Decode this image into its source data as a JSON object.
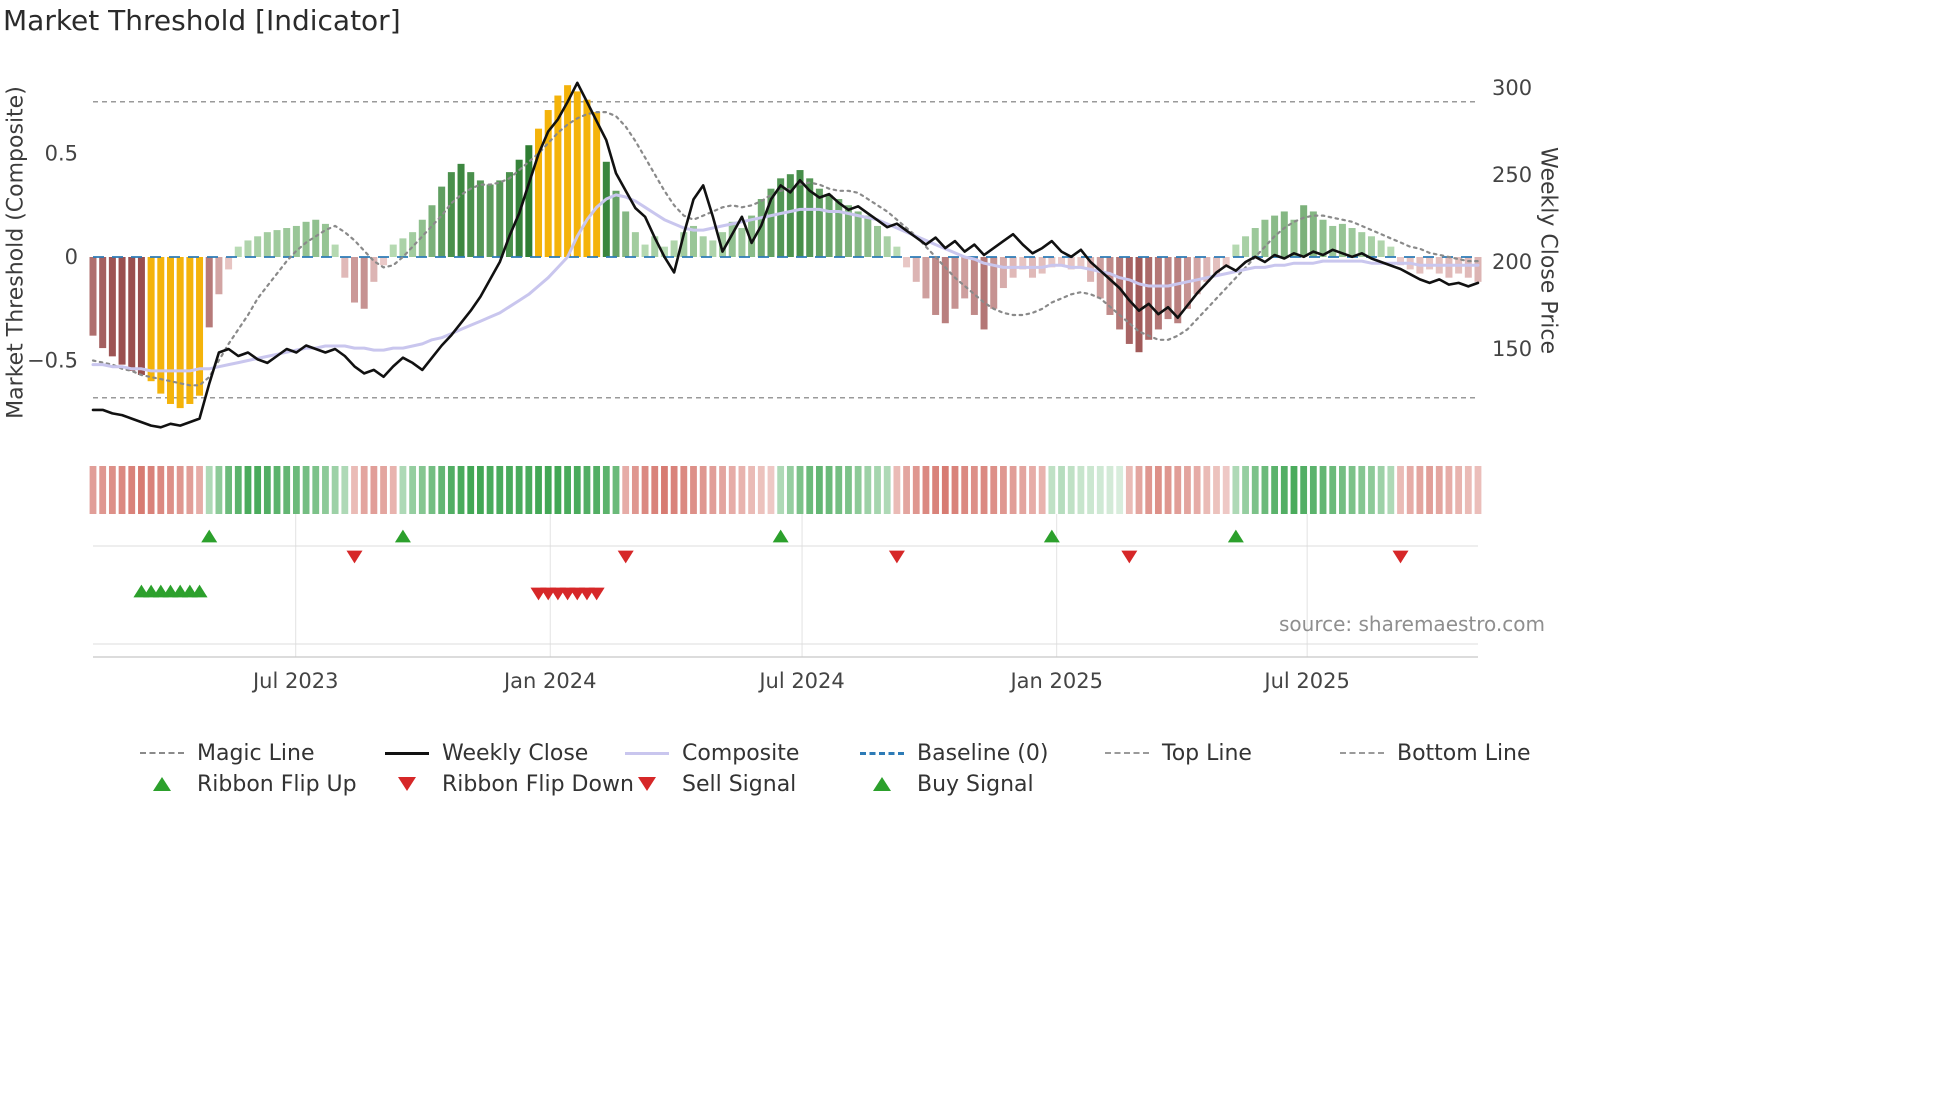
{
  "title": "Market Threshold [Indicator]",
  "source": "source: sharemaestro.com",
  "axes": {
    "left_label": "Market Threshold (Composite)",
    "right_label": "Weekly Close Price",
    "left_ticks": [
      {
        "value": 0.5,
        "label": "0.5"
      },
      {
        "value": 0,
        "label": "0"
      },
      {
        "value": -0.5,
        "label": "−0.5"
      }
    ],
    "right_ticks": [
      {
        "value": 300,
        "label": "300"
      },
      {
        "value": 250,
        "label": "250"
      },
      {
        "value": 200,
        "label": "200"
      },
      {
        "value": 150,
        "label": "150"
      }
    ],
    "x_ticks": [
      {
        "week": 20.93,
        "label": "Jul 2023"
      },
      {
        "week": 47.21,
        "label": "Jan 2024"
      },
      {
        "week": 73.21,
        "label": "Jul 2024"
      },
      {
        "week": 99.5,
        "label": "Jan 2025"
      },
      {
        "week": 125.36,
        "label": "Jul 2025"
      }
    ]
  },
  "colors": {
    "background": "#ffffff",
    "title_text": "#2b2b2b",
    "axis_text": "#444444",
    "weekly_close": "#111111",
    "magic_line": "#8a8a8a",
    "composite_line": "#c9c6ee",
    "baseline": "#2d7bb6",
    "top_bottom_line": "#9a9a9a",
    "bar_green_light": "#c7e5c2",
    "bar_green_dark": "#2e7d32",
    "bar_red_light": "#f1d4d2",
    "bar_red_dark": "#9a4f4f",
    "highlight": "#f4b30a",
    "ribbon_green": "#2f9e44",
    "ribbon_red": "#c94f43",
    "buy_green": "#2ca02c",
    "sell_red": "#d62728",
    "grid": "#e2e2e2",
    "source_text": "#8f8f8f"
  },
  "chart_data": {
    "type": "composite-indicator",
    "title": "Market Threshold [Indicator]",
    "weeks": 144,
    "x_range": [
      "Feb 2023",
      "Nov 2025"
    ],
    "x_tick_labels": [
      "Jul 2023",
      "Jan 2024",
      "Jul 2024",
      "Jan 2025",
      "Jul 2025"
    ],
    "left_axis": {
      "label": "Market Threshold (Composite)",
      "range": [
        -0.9,
        0.95
      ]
    },
    "right_axis": {
      "label": "Weekly Close Price",
      "range": [
        100,
        315
      ]
    },
    "reference_lines": {
      "baseline": 0,
      "top_line": 0.75,
      "bottom_line": -0.68
    },
    "series": [
      {
        "name": "Composite Histogram",
        "type": "bar",
        "axis": "left",
        "values": [
          -0.38,
          -0.44,
          -0.48,
          -0.52,
          -0.55,
          -0.57,
          -0.6,
          -0.66,
          -0.71,
          -0.73,
          -0.71,
          -0.67,
          -0.34,
          -0.18,
          -0.06,
          0.05,
          0.08,
          0.1,
          0.12,
          0.13,
          0.14,
          0.15,
          0.17,
          0.18,
          0.16,
          0.06,
          -0.1,
          -0.22,
          -0.25,
          -0.12,
          -0.04,
          0.06,
          0.09,
          0.12,
          0.18,
          0.25,
          0.34,
          0.41,
          0.45,
          0.41,
          0.37,
          0.35,
          0.37,
          0.41,
          0.47,
          0.54,
          0.62,
          0.71,
          0.78,
          0.83,
          0.8,
          0.76,
          0.7,
          0.46,
          0.32,
          0.22,
          0.12,
          0.06,
          0.1,
          0.05,
          0.08,
          0.12,
          0.15,
          0.1,
          0.08,
          0.12,
          0.17,
          0.14,
          0.2,
          0.28,
          0.33,
          0.38,
          0.4,
          0.42,
          0.38,
          0.33,
          0.3,
          0.28,
          0.25,
          0.22,
          0.2,
          0.15,
          0.1,
          0.05,
          -0.05,
          -0.12,
          -0.2,
          -0.28,
          -0.32,
          -0.25,
          -0.2,
          -0.28,
          -0.35,
          -0.25,
          -0.15,
          -0.1,
          -0.06,
          -0.1,
          -0.08,
          -0.05,
          -0.04,
          -0.06,
          -0.05,
          -0.12,
          -0.2,
          -0.28,
          -0.35,
          -0.42,
          -0.46,
          -0.4,
          -0.35,
          -0.3,
          -0.32,
          -0.25,
          -0.18,
          -0.12,
          -0.08,
          -0.05,
          0.06,
          0.1,
          0.14,
          0.18,
          0.2,
          0.22,
          0.18,
          0.25,
          0.22,
          0.18,
          0.15,
          0.16,
          0.14,
          0.12,
          0.1,
          0.08,
          0.05,
          -0.04,
          -0.06,
          -0.08,
          -0.06,
          -0.08,
          -0.1,
          -0.08,
          -0.1,
          -0.12
        ]
      },
      {
        "name": "Magic Line",
        "type": "line",
        "style": "dotted",
        "axis": "left",
        "values": [
          -0.5,
          -0.51,
          -0.52,
          -0.54,
          -0.55,
          -0.57,
          -0.58,
          -0.59,
          -0.6,
          -0.61,
          -0.62,
          -0.62,
          -0.58,
          -0.5,
          -0.42,
          -0.35,
          -0.28,
          -0.2,
          -0.14,
          -0.08,
          -0.02,
          0.03,
          0.07,
          0.1,
          0.13,
          0.15,
          0.12,
          0.08,
          0.03,
          -0.02,
          -0.05,
          -0.04,
          0,
          0.05,
          0.1,
          0.15,
          0.2,
          0.26,
          0.3,
          0.33,
          0.35,
          0.35,
          0.36,
          0.38,
          0.42,
          0.46,
          0.5,
          0.55,
          0.6,
          0.64,
          0.67,
          0.69,
          0.7,
          0.7,
          0.68,
          0.63,
          0.56,
          0.48,
          0.4,
          0.32,
          0.25,
          0.2,
          0.18,
          0.2,
          0.22,
          0.24,
          0.25,
          0.24,
          0.25,
          0.27,
          0.3,
          0.32,
          0.33,
          0.35,
          0.36,
          0.35,
          0.33,
          0.32,
          0.32,
          0.31,
          0.28,
          0.25,
          0.22,
          0.18,
          0.14,
          0.1,
          0.05,
          0,
          -0.05,
          -0.1,
          -0.14,
          -0.18,
          -0.22,
          -0.25,
          -0.27,
          -0.28,
          -0.28,
          -0.27,
          -0.25,
          -0.22,
          -0.2,
          -0.18,
          -0.17,
          -0.18,
          -0.2,
          -0.24,
          -0.28,
          -0.32,
          -0.36,
          -0.38,
          -0.4,
          -0.4,
          -0.38,
          -0.35,
          -0.3,
          -0.25,
          -0.2,
          -0.15,
          -0.1,
          -0.05,
          0,
          0.05,
          0.1,
          0.14,
          0.17,
          0.19,
          0.2,
          0.2,
          0.19,
          0.18,
          0.17,
          0.15,
          0.13,
          0.11,
          0.09,
          0.07,
          0.05,
          0.04,
          0.02,
          0.01,
          0,
          -0.01,
          -0.02,
          -0.02
        ]
      },
      {
        "name": "Composite",
        "type": "line",
        "axis": "left",
        "values": [
          -0.52,
          -0.52,
          -0.53,
          -0.53,
          -0.54,
          -0.54,
          -0.55,
          -0.55,
          -0.55,
          -0.55,
          -0.55,
          -0.54,
          -0.54,
          -0.53,
          -0.52,
          -0.51,
          -0.5,
          -0.49,
          -0.48,
          -0.47,
          -0.46,
          -0.45,
          -0.44,
          -0.44,
          -0.43,
          -0.43,
          -0.43,
          -0.44,
          -0.44,
          -0.45,
          -0.45,
          -0.44,
          -0.44,
          -0.43,
          -0.42,
          -0.4,
          -0.39,
          -0.37,
          -0.35,
          -0.33,
          -0.31,
          -0.29,
          -0.27,
          -0.24,
          -0.21,
          -0.18,
          -0.14,
          -0.1,
          -0.05,
          0,
          0.1,
          0.18,
          0.24,
          0.28,
          0.3,
          0.29,
          0.27,
          0.24,
          0.21,
          0.18,
          0.16,
          0.14,
          0.13,
          0.13,
          0.14,
          0.15,
          0.16,
          0.17,
          0.18,
          0.19,
          0.2,
          0.21,
          0.22,
          0.23,
          0.23,
          0.23,
          0.22,
          0.22,
          0.21,
          0.2,
          0.19,
          0.18,
          0.16,
          0.14,
          0.12,
          0.1,
          0.08,
          0.06,
          0.04,
          0.02,
          0,
          -0.01,
          -0.03,
          -0.04,
          -0.05,
          -0.05,
          -0.05,
          -0.05,
          -0.05,
          -0.04,
          -0.04,
          -0.05,
          -0.05,
          -0.06,
          -0.07,
          -0.08,
          -0.1,
          -0.11,
          -0.13,
          -0.14,
          -0.14,
          -0.14,
          -0.13,
          -0.12,
          -0.11,
          -0.1,
          -0.09,
          -0.08,
          -0.07,
          -0.06,
          -0.05,
          -0.05,
          -0.04,
          -0.04,
          -0.03,
          -0.03,
          -0.03,
          -0.02,
          -0.02,
          -0.02,
          -0.02,
          -0.02,
          -0.03,
          -0.03,
          -0.03,
          -0.03,
          -0.03,
          -0.04,
          -0.04,
          -0.04,
          -0.04,
          -0.04,
          -0.04,
          -0.04
        ]
      },
      {
        "name": "Weekly Close",
        "type": "line",
        "axis": "right",
        "values": [
          115,
          115,
          113,
          112,
          110,
          108,
          106,
          105,
          107,
          106,
          108,
          110,
          130,
          148,
          150,
          146,
          148,
          144,
          142,
          146,
          150,
          148,
          152,
          150,
          148,
          150,
          146,
          140,
          136,
          138,
          134,
          140,
          145,
          142,
          138,
          145,
          152,
          158,
          165,
          172,
          180,
          190,
          200,
          215,
          228,
          245,
          262,
          275,
          282,
          292,
          303,
          292,
          281,
          270,
          251,
          241,
          231,
          226,
          214,
          203,
          194,
          216,
          236,
          244,
          226,
          206,
          216,
          226,
          211,
          221,
          236,
          244,
          240,
          247,
          241,
          237,
          239,
          234,
          230,
          232,
          228,
          224,
          220,
          222,
          218,
          214,
          210,
          214,
          208,
          212,
          206,
          210,
          204,
          208,
          212,
          216,
          210,
          205,
          208,
          212,
          206,
          203,
          207,
          200,
          195,
          190,
          185,
          178,
          172,
          176,
          170,
          174,
          168,
          175,
          182,
          188,
          194,
          198,
          195,
          200,
          203,
          200,
          204,
          202,
          205,
          203,
          206,
          204,
          207,
          205,
          203,
          205,
          202,
          200,
          198,
          196,
          193,
          190,
          188,
          190,
          187,
          188,
          186,
          188
        ]
      }
    ],
    "highlight_weeks": [
      6,
      7,
      8,
      9,
      10,
      11,
      46,
      47,
      48,
      49,
      50,
      51,
      52
    ],
    "ribbon": [
      -0.5,
      -0.55,
      -0.6,
      -0.65,
      -0.7,
      -0.75,
      -0.7,
      -0.65,
      -0.6,
      -0.55,
      -0.5,
      -0.4,
      0.3,
      0.5,
      0.7,
      0.8,
      0.9,
      0.9,
      0.85,
      0.8,
      0.75,
      0.7,
      0.65,
      0.6,
      0.5,
      0.4,
      0.3,
      -0.3,
      -0.45,
      -0.5,
      -0.45,
      -0.35,
      0.3,
      0.45,
      0.55,
      0.65,
      0.75,
      0.85,
      0.9,
      0.95,
      0.95,
      0.9,
      0.9,
      0.9,
      0.9,
      0.9,
      0.95,
      0.95,
      0.95,
      0.9,
      0.9,
      0.85,
      0.85,
      0.8,
      0.7,
      -0.4,
      -0.55,
      -0.65,
      -0.7,
      -0.75,
      -0.7,
      -0.65,
      -0.6,
      -0.55,
      -0.5,
      -0.45,
      -0.4,
      -0.35,
      -0.3,
      -0.25,
      -0.2,
      0.3,
      0.45,
      0.6,
      0.7,
      0.75,
      0.7,
      0.65,
      0.6,
      0.5,
      0.4,
      0.35,
      0.3,
      -0.3,
      -0.45,
      -0.55,
      -0.65,
      -0.7,
      -0.75,
      -0.7,
      -0.65,
      -0.6,
      -0.65,
      -0.6,
      -0.55,
      -0.5,
      -0.45,
      -0.4,
      -0.35,
      0.2,
      0.25,
      0.2,
      0.15,
      0.12,
      0.1,
      0.08,
      0.05,
      -0.3,
      -0.45,
      -0.55,
      -0.6,
      -0.55,
      -0.5,
      -0.45,
      -0.4,
      -0.3,
      -0.25,
      -0.2,
      0.3,
      0.45,
      0.6,
      0.7,
      0.8,
      0.85,
      0.9,
      0.85,
      0.8,
      0.75,
      0.7,
      0.65,
      0.6,
      0.55,
      0.5,
      0.4,
      0.3,
      -0.3,
      -0.4,
      -0.45,
      -0.5,
      -0.45,
      -0.4,
      -0.35,
      -0.3,
      -0.28
    ],
    "signals": {
      "ribbon_flip_up": [
        12,
        32,
        71,
        99,
        118
      ],
      "ribbon_flip_down": [
        27,
        55,
        83,
        107,
        135
      ],
      "buy": [
        5,
        6,
        7,
        8,
        9,
        10,
        11
      ],
      "sell": [
        46,
        47,
        48,
        49,
        50,
        51,
        52
      ]
    }
  },
  "legend": {
    "items": [
      {
        "label": "Magic Line",
        "swatch": "dashed-gray-line"
      },
      {
        "label": "Weekly Close",
        "swatch": "solid-black-line"
      },
      {
        "label": "Composite",
        "swatch": "solid-lavender-line"
      },
      {
        "label": "Baseline (0)",
        "swatch": "dashed-blue-line"
      },
      {
        "label": "Top Line",
        "swatch": "dashed-thin-gray-line"
      },
      {
        "label": "Bottom Line",
        "swatch": "dashed-thin-gray-line"
      },
      {
        "label": "Ribbon Flip Up",
        "swatch": "green-up-triangle"
      },
      {
        "label": "Ribbon Flip Down",
        "swatch": "red-down-triangle"
      },
      {
        "label": "Sell Signal",
        "swatch": "red-down-triangle"
      },
      {
        "label": "Buy Signal",
        "swatch": "green-up-triangle"
      }
    ]
  }
}
